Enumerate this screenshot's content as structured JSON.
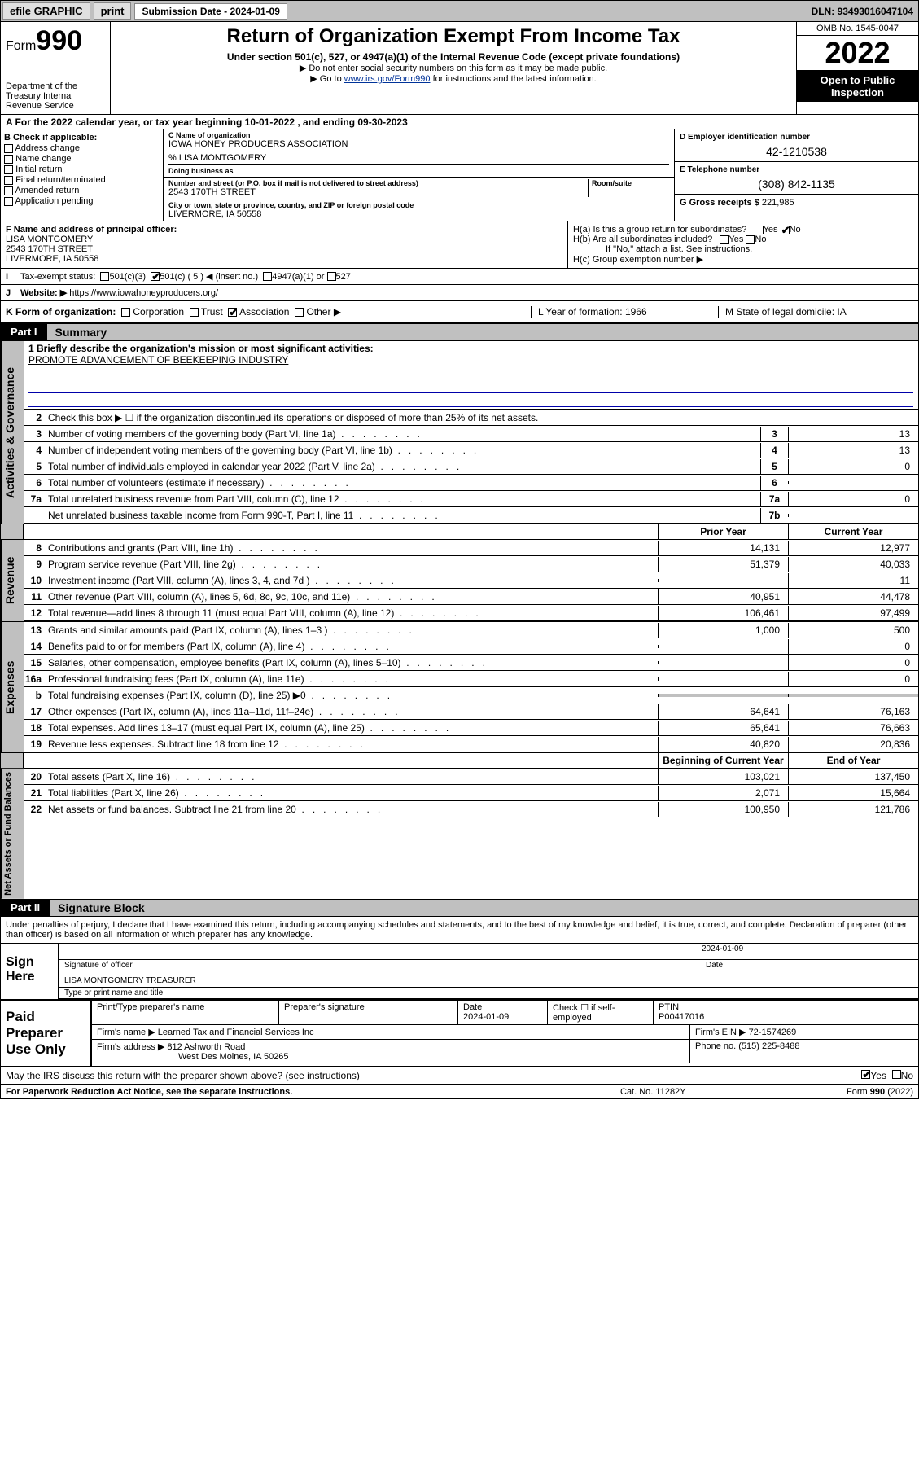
{
  "topbar": {
    "efile": "efile GRAPHIC",
    "print": "print",
    "subdate_label": "Submission Date - ",
    "subdate": "2024-01-09",
    "dln_label": "DLN: ",
    "dln": "93493016047104"
  },
  "header": {
    "form_prefix": "Form",
    "form_num": "990",
    "dept": "Department of the Treasury Internal Revenue Service",
    "title": "Return of Organization Exempt From Income Tax",
    "subtitle": "Under section 501(c), 527, or 4947(a)(1) of the Internal Revenue Code (except private foundations)",
    "warn": "▶ Do not enter social security numbers on this form as it may be made public.",
    "goto_pre": "▶ Go to ",
    "goto_link": "www.irs.gov/Form990",
    "goto_post": " for instructions and the latest information.",
    "omb": "OMB No. 1545-0047",
    "year": "2022",
    "insp": "Open to Public Inspection"
  },
  "lineA": "A For the 2022 calendar year, or tax year beginning 10-01-2022    , and ending 09-30-2023",
  "blockB": {
    "hdr": "B Check if applicable:",
    "opts": [
      "Address change",
      "Name change",
      "Initial return",
      "Final return/terminated",
      "Amended return",
      "Application pending"
    ]
  },
  "blockC": {
    "name_label": "C Name of organization",
    "name": "IOWA HONEY PRODUCERS ASSOCIATION",
    "careof_label": "% LISA MONTGOMERY",
    "dba_label": "Doing business as",
    "addr_label": "Number and street (or P.O. box if mail is not delivered to street address)",
    "room_label": "Room/suite",
    "addr": "2543 170TH STREET",
    "city_label": "City or town, state or province, country, and ZIP or foreign postal code",
    "city": "LIVERMORE, IA  50558"
  },
  "blockD": {
    "label": "D Employer identification number",
    "val": "42-1210538"
  },
  "blockE": {
    "label": "E Telephone number",
    "val": "(308) 842-1135"
  },
  "blockG": {
    "label": "G Gross receipts $ ",
    "val": "221,985"
  },
  "blockF": {
    "label": "F Name and address of principal officer:",
    "name": "LISA MONTGOMERY",
    "addr1": "2543 170TH STREET",
    "addr2": "LIVERMORE, IA  50558"
  },
  "blockH": {
    "a_label": "H(a)  Is this a group return for subordinates?",
    "b_label": "H(b)  Are all subordinates included?",
    "b_note": "If \"No,\" attach a list. See instructions.",
    "c_label": "H(c)  Group exemption number ▶",
    "yes": "Yes",
    "no": "No"
  },
  "lineI": {
    "label": "Tax-exempt status:",
    "c3": "501(c)(3)",
    "c5": "501(c) ( 5 ) ◀ (insert no.)",
    "a4947": "4947(a)(1) or",
    "s527": "527"
  },
  "lineJ": {
    "label": "Website: ▶",
    "val": "https://www.iowahoneyproducers.org/"
  },
  "lineK": {
    "label": "K Form of organization:",
    "opts": [
      "Corporation",
      "Trust",
      "Association",
      "Other ▶"
    ],
    "checked": 2,
    "L": "L Year of formation: 1966",
    "M": "M State of legal domicile: IA"
  },
  "partI": {
    "num": "Part I",
    "title": "Summary"
  },
  "summary": {
    "vtab1": "Activities & Governance",
    "l1": "1   Briefly describe the organization's mission or most significant activities:",
    "mission": "PROMOTE ADVANCEMENT OF BEEKEEPING INDUSTRY",
    "l2": "Check this box ▶ ☐  if the organization discontinued its operations or disposed of more than 25% of its net assets.",
    "rows_gov": [
      {
        "n": "3",
        "d": "Number of voting members of the governing body (Part VI, line 1a)",
        "nc": "3",
        "v": "13"
      },
      {
        "n": "4",
        "d": "Number of independent voting members of the governing body (Part VI, line 1b)",
        "nc": "4",
        "v": "13"
      },
      {
        "n": "5",
        "d": "Total number of individuals employed in calendar year 2022 (Part V, line 2a)",
        "nc": "5",
        "v": "0"
      },
      {
        "n": "6",
        "d": "Total number of volunteers (estimate if necessary)",
        "nc": "6",
        "v": ""
      },
      {
        "n": "7a",
        "d": "Total unrelated business revenue from Part VIII, column (C), line 12",
        "nc": "7a",
        "v": "0"
      },
      {
        "n": "",
        "d": "Net unrelated business taxable income from Form 990-T, Part I, line 11",
        "nc": "7b",
        "v": ""
      }
    ],
    "prior_hdr": "Prior Year",
    "curr_hdr": "Current Year",
    "vtab2": "Revenue",
    "rows_rev": [
      {
        "n": "8",
        "d": "Contributions and grants (Part VIII, line 1h)",
        "p": "14,131",
        "c": "12,977"
      },
      {
        "n": "9",
        "d": "Program service revenue (Part VIII, line 2g)",
        "p": "51,379",
        "c": "40,033"
      },
      {
        "n": "10",
        "d": "Investment income (Part VIII, column (A), lines 3, 4, and 7d )",
        "p": "",
        "c": "11"
      },
      {
        "n": "11",
        "d": "Other revenue (Part VIII, column (A), lines 5, 6d, 8c, 9c, 10c, and 11e)",
        "p": "40,951",
        "c": "44,478"
      },
      {
        "n": "12",
        "d": "Total revenue—add lines 8 through 11 (must equal Part VIII, column (A), line 12)",
        "p": "106,461",
        "c": "97,499"
      }
    ],
    "vtab3": "Expenses",
    "rows_exp": [
      {
        "n": "13",
        "d": "Grants and similar amounts paid (Part IX, column (A), lines 1–3 )",
        "p": "1,000",
        "c": "500"
      },
      {
        "n": "14",
        "d": "Benefits paid to or for members (Part IX, column (A), line 4)",
        "p": "",
        "c": "0"
      },
      {
        "n": "15",
        "d": "Salaries, other compensation, employee benefits (Part IX, column (A), lines 5–10)",
        "p": "",
        "c": "0"
      },
      {
        "n": "16a",
        "d": "Professional fundraising fees (Part IX, column (A), line 11e)",
        "p": "",
        "c": "0"
      },
      {
        "n": "b",
        "d": "Total fundraising expenses (Part IX, column (D), line 25) ▶0",
        "p": "grey",
        "c": "grey"
      },
      {
        "n": "17",
        "d": "Other expenses (Part IX, column (A), lines 11a–11d, 11f–24e)",
        "p": "64,641",
        "c": "76,163"
      },
      {
        "n": "18",
        "d": "Total expenses. Add lines 13–17 (must equal Part IX, column (A), line 25)",
        "p": "65,641",
        "c": "76,663"
      },
      {
        "n": "19",
        "d": "Revenue less expenses. Subtract line 18 from line 12",
        "p": "40,820",
        "c": "20,836"
      }
    ],
    "begin_hdr": "Beginning of Current Year",
    "end_hdr": "End of Year",
    "vtab4": "Net Assets or Fund Balances",
    "rows_net": [
      {
        "n": "20",
        "d": "Total assets (Part X, line 16)",
        "p": "103,021",
        "c": "137,450"
      },
      {
        "n": "21",
        "d": "Total liabilities (Part X, line 26)",
        "p": "2,071",
        "c": "15,664"
      },
      {
        "n": "22",
        "d": "Net assets or fund balances. Subtract line 21 from line 20",
        "p": "100,950",
        "c": "121,786"
      }
    ]
  },
  "partII": {
    "num": "Part II",
    "title": "Signature Block"
  },
  "sig": {
    "decl": "Under penalties of perjury, I declare that I have examined this return, including accompanying schedules and statements, and to the best of my knowledge and belief, it is true, correct, and complete. Declaration of preparer (other than officer) is based on all information of which preparer has any knowledge.",
    "here": "Sign Here",
    "officer_label": "Signature of officer",
    "date_label": "Date",
    "date": "2024-01-09",
    "name_title": "LISA MONTGOMERY TREASURER",
    "name_label": "Type or print name and title"
  },
  "paid": {
    "label": "Paid Preparer Use Only",
    "h1": "Print/Type preparer's name",
    "h2": "Preparer's signature",
    "h3": "Date",
    "h3v": "2024-01-09",
    "h4": "Check ☐ if self-employed",
    "h5": "PTIN",
    "h5v": "P00417016",
    "firm_label": "Firm's name    ▶",
    "firm": "Learned Tax and Financial Services Inc",
    "ein_label": "Firm's EIN ▶",
    "ein": "72-1574269",
    "addr_label": "Firm's address ▶",
    "addr1": "812 Ashworth Road",
    "addr2": "West Des Moines, IA  50265",
    "phone_label": "Phone no.",
    "phone": "(515) 225-8488"
  },
  "discuss": {
    "q": "May the IRS discuss this return with the preparer shown above? (see instructions)",
    "yes": "Yes",
    "no": "No"
  },
  "footer": {
    "pra": "For Paperwork Reduction Act Notice, see the separate instructions.",
    "cat": "Cat. No. 11282Y",
    "form": "Form 990 (2022)"
  }
}
